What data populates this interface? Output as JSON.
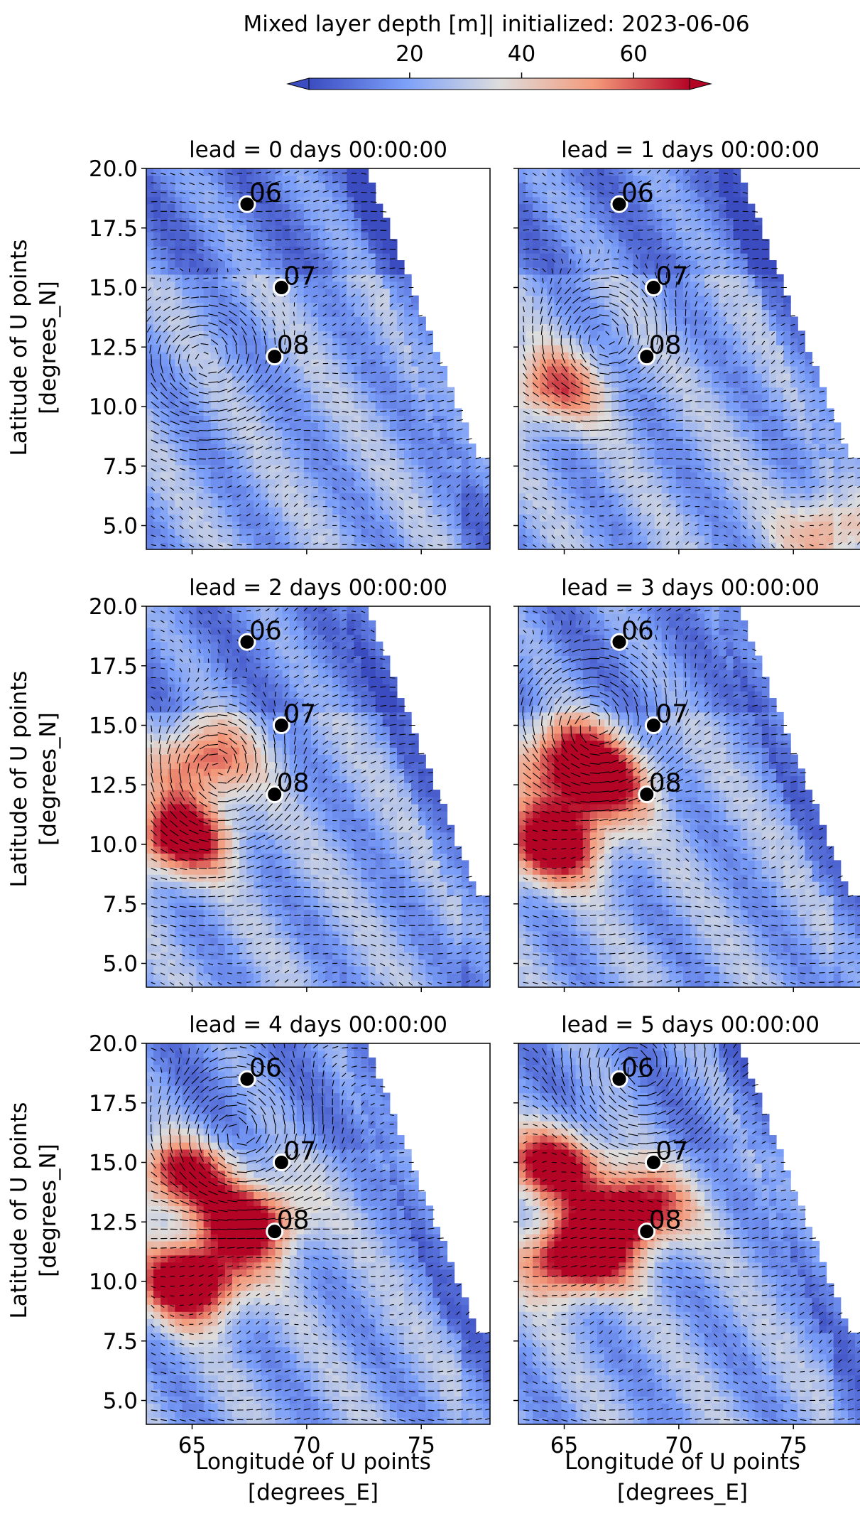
{
  "colorbar": {
    "label": "Mixed layer depth [m]| initialized: 2023-06-06",
    "vmin": 2,
    "vmax": 70,
    "ticks": [
      20,
      40,
      60
    ],
    "tick_labels": [
      "20",
      "40",
      "60"
    ],
    "colormap": "coolwarm",
    "extend": "both"
  },
  "axes": {
    "ylabel_line1": "Latitude of U points",
    "ylabel_line2": "[degrees_N]",
    "xlabel_line1": "Longitude of U points",
    "xlabel_line2": "[degrees_E]",
    "xlim": [
      63.0,
      78.0
    ],
    "ylim": [
      4.0,
      20.0
    ],
    "xticks": [
      65,
      70,
      75
    ],
    "xtick_labels": [
      "65",
      "70",
      "75"
    ],
    "yticks": [
      5.0,
      7.5,
      10.0,
      12.5,
      15.0,
      17.5,
      20.0
    ],
    "ytick_labels": [
      "5.0",
      "7.5",
      "10.0",
      "12.5",
      "15.0",
      "17.5",
      "20.0"
    ]
  },
  "chart_data": {
    "type": "heatmap",
    "description_of_fields": "Mixed layer depth (m) with overlaid current vectors, 6 forecast leads",
    "panels": [
      {
        "title": "lead = 0 days 00:00:00",
        "lead_days": 0,
        "deep_cores": []
      },
      {
        "title": "lead = 1 days 00:00:00",
        "lead_days": 1,
        "deep_cores": [
          [
            64.5,
            10.8,
            0.55
          ],
          [
            77.0,
            4.8,
            0.5
          ]
        ]
      },
      {
        "title": "lead = 2 days 00:00:00",
        "lead_days": 2,
        "deep_cores": [
          [
            64.5,
            10.3,
            0.85
          ],
          [
            65.5,
            13.5,
            0.6
          ]
        ]
      },
      {
        "title": "lead = 3 days 00:00:00",
        "lead_days": 3,
        "deep_cores": [
          [
            64.5,
            10.0,
            0.9
          ],
          [
            66.5,
            12.5,
            0.75
          ],
          [
            65.0,
            13.8,
            0.6
          ]
        ]
      },
      {
        "title": "lead = 4 days 00:00:00",
        "lead_days": 4,
        "deep_cores": [
          [
            65.0,
            10.0,
            1.0
          ],
          [
            67.5,
            12.5,
            0.85
          ],
          [
            64.5,
            14.5,
            0.7
          ]
        ]
      },
      {
        "title": "lead = 5 days 00:00:00",
        "lead_days": 5,
        "deep_cores": [
          [
            65.5,
            11.0,
            1.0
          ],
          [
            68.0,
            13.0,
            0.9
          ],
          [
            64.5,
            15.0,
            0.8
          ]
        ]
      }
    ],
    "stations": [
      {
        "label": "06",
        "lon": 67.4,
        "lat": 18.5
      },
      {
        "label": "07",
        "lon": 68.9,
        "lat": 15.0
      },
      {
        "label": "08",
        "lon": 68.6,
        "lat": 12.1
      }
    ],
    "vortex_centers": [
      [
        65.7,
        11.8
      ],
      [
        66.8,
        12.8
      ],
      [
        66.2,
        13.0
      ],
      [
        66.3,
        14.8
      ],
      [
        67.0,
        16.2
      ],
      [
        68.2,
        18.8
      ]
    ]
  },
  "colors": {
    "marker_fill": "#000000",
    "marker_edge": "#ffffff",
    "land": "#ffffff"
  }
}
